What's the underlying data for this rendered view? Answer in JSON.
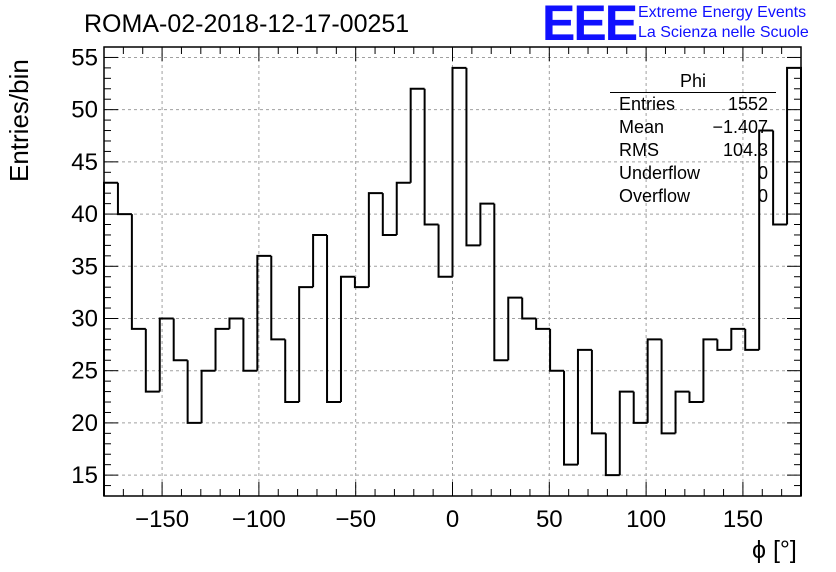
{
  "header": {
    "title": "ROMA-02-2018-12-17-00251",
    "logo": "EEE",
    "org_line1": "Extreme Energy Events",
    "org_line2": "La Scienza nelle Scuole"
  },
  "stats_box": {
    "name": "Phi",
    "rows": [
      {
        "key": "Entries",
        "value": "1552"
      },
      {
        "key": "Mean",
        "value": "−1.407"
      },
      {
        "key": "RMS",
        "value": "104.3"
      },
      {
        "key": "Underflow",
        "value": "0"
      },
      {
        "key": "Overflow",
        "value": "0"
      }
    ]
  },
  "chart_data": {
    "type": "histogram",
    "title": "ROMA-02-2018-12-17-00251",
    "xlabel": "ϕ [°]",
    "ylabel": "Entries/bin",
    "xlim": [
      -180,
      180
    ],
    "ylim": [
      13,
      56
    ],
    "bin_width": 7.2,
    "grid": true,
    "xticks": [
      -150,
      -100,
      -50,
      0,
      50,
      100,
      150
    ],
    "xtick_labels": [
      "−150",
      "−100",
      "−50",
      "0",
      "50",
      "100",
      "150"
    ],
    "yticks": [
      15,
      20,
      25,
      30,
      35,
      40,
      45,
      50,
      55
    ],
    "ytick_labels": [
      "15",
      "20",
      "25",
      "30",
      "35",
      "40",
      "45",
      "50",
      "55"
    ],
    "values": [
      43,
      40,
      29,
      23,
      30,
      26,
      20,
      25,
      29,
      30,
      25,
      36,
      28,
      22,
      33,
      38,
      22,
      34,
      33,
      42,
      38,
      43,
      52,
      39,
      34,
      54,
      37,
      41,
      26,
      32,
      30,
      29,
      25,
      16,
      27,
      19,
      15,
      23,
      20,
      28,
      19,
      23,
      22,
      28,
      27,
      29,
      27,
      48,
      39,
      54
    ],
    "line_color": "#000000"
  }
}
